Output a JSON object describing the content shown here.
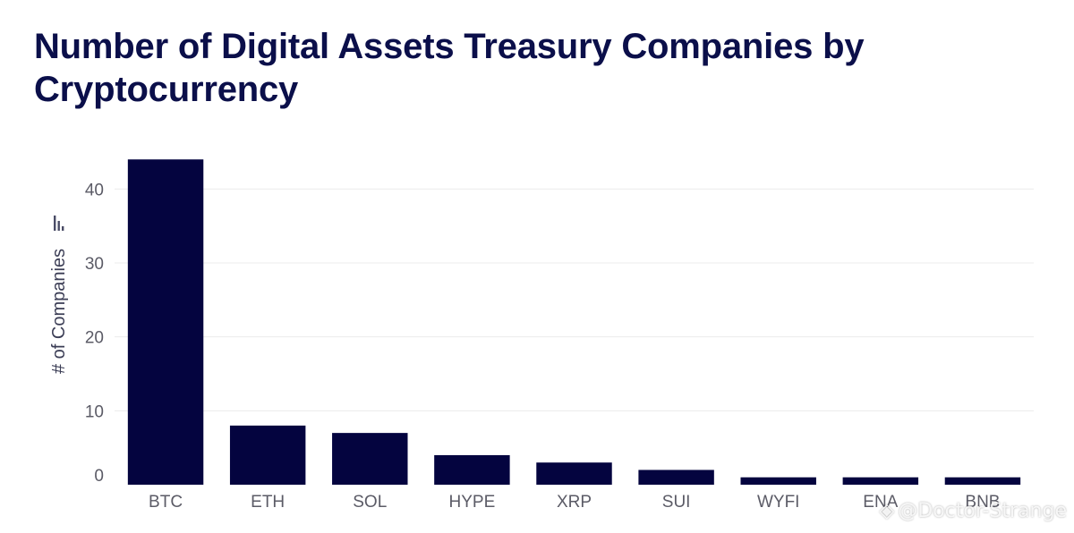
{
  "chart_data": {
    "type": "bar",
    "title": "Number of Digital Assets Treasury Companies by Cryptocurrency",
    "ylabel": "# of Companies",
    "xlabel": "",
    "categories": [
      "BTC",
      "ETH",
      "SOL",
      "HYPE",
      "XRP",
      "SUI",
      "WYFI",
      "ENA",
      "BNB"
    ],
    "values": [
      44,
      8,
      7,
      4,
      3,
      2,
      1,
      1,
      1
    ],
    "ylim": [
      0,
      45
    ],
    "yticks": [
      0,
      10,
      20,
      30,
      40
    ],
    "grid": true,
    "legend": "none",
    "colors": {
      "bar": "#04043f",
      "grid": "#ececec",
      "title": "#0b0f4a"
    }
  },
  "watermark": {
    "icon": "diamond-logo-icon",
    "text": "@Doctor-Strange"
  }
}
